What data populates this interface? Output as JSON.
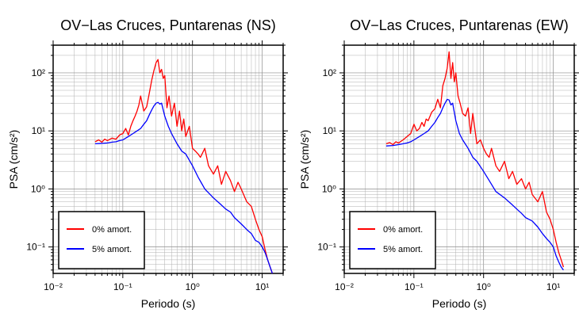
{
  "chart_data": [
    {
      "type": "line",
      "title": "OV−Las Cruces, Puntarenas (NS)",
      "xlabel": "Periodo (s)",
      "ylabel": "PSA (cm/s²)",
      "xscale": "log",
      "yscale": "log",
      "xlim": [
        0.01,
        20
      ],
      "ylim": [
        0.035,
        300
      ],
      "grid": true,
      "legend_position": "bottom-left",
      "x_tick_labels": [
        "10⁻²",
        "10⁻¹",
        "10⁰",
        "10¹"
      ],
      "y_tick_labels": [
        "10⁻¹",
        "10⁰",
        "10¹",
        "10²"
      ],
      "series": [
        {
          "name": "0% amort.",
          "color": "#ff0000",
          "x": [
            0.04,
            0.045,
            0.05,
            0.055,
            0.06,
            0.07,
            0.08,
            0.09,
            0.1,
            0.11,
            0.12,
            0.13,
            0.14,
            0.15,
            0.16,
            0.17,
            0.18,
            0.2,
            0.22,
            0.24,
            0.26,
            0.28,
            0.3,
            0.32,
            0.34,
            0.36,
            0.38,
            0.4,
            0.43,
            0.46,
            0.5,
            0.55,
            0.6,
            0.65,
            0.7,
            0.75,
            0.8,
            0.9,
            1.0,
            1.1,
            1.2,
            1.3,
            1.5,
            1.7,
            2.0,
            2.3,
            2.6,
            3.0,
            3.5,
            4.0,
            4.5,
            5.0,
            6.0,
            7.0,
            8.0,
            9.0,
            10.0,
            11.0,
            12.0,
            13.0,
            14.0
          ],
          "y": [
            6.5,
            7.0,
            6.4,
            7.2,
            6.8,
            7.5,
            7.2,
            8.5,
            9.0,
            11.0,
            8.5,
            12.0,
            15.0,
            18.0,
            22.0,
            28.0,
            40.0,
            22.0,
            26.0,
            45.0,
            75.0,
            110.0,
            150.0,
            170.0,
            100.0,
            115.0,
            80.0,
            90.0,
            25.0,
            40.0,
            18.0,
            30.0,
            12.0,
            22.0,
            10.0,
            16.0,
            8.0,
            12.0,
            5.0,
            4.5,
            4.0,
            3.5,
            5.0,
            2.5,
            1.8,
            2.5,
            1.2,
            2.0,
            1.4,
            0.9,
            1.3,
            1.0,
            0.6,
            0.5,
            0.3,
            0.2,
            0.15,
            0.09,
            0.06,
            0.045,
            0.035
          ]
        },
        {
          "name": "5% amort.",
          "color": "#0000ff",
          "x": [
            0.04,
            0.05,
            0.06,
            0.07,
            0.08,
            0.09,
            0.1,
            0.12,
            0.14,
            0.16,
            0.18,
            0.2,
            0.22,
            0.24,
            0.26,
            0.28,
            0.3,
            0.32,
            0.34,
            0.36,
            0.4,
            0.45,
            0.5,
            0.6,
            0.7,
            0.8,
            1.0,
            1.2,
            1.5,
            2.0,
            2.5,
            3.0,
            3.5,
            4.0,
            5.0,
            6.0,
            7.0,
            8.0,
            9.0,
            10.0,
            11.0,
            12.0,
            13.0,
            14.0
          ],
          "y": [
            6.0,
            6.1,
            6.2,
            6.4,
            6.5,
            6.8,
            7.0,
            8.0,
            9.0,
            10.0,
            11.0,
            13.0,
            15.0,
            19.0,
            23.0,
            27.0,
            30.0,
            31.0,
            29.0,
            30.0,
            18.0,
            12.0,
            9.0,
            6.0,
            4.5,
            4.0,
            2.5,
            1.6,
            1.0,
            0.7,
            0.55,
            0.45,
            0.4,
            0.32,
            0.25,
            0.2,
            0.17,
            0.13,
            0.12,
            0.1,
            0.08,
            0.06,
            0.045,
            0.035
          ]
        }
      ]
    },
    {
      "type": "line",
      "title": "OV−Las Cruces, Puntarenas (EW)",
      "xlabel": "Periodo (s)",
      "ylabel": "PSA (cm/s²)",
      "xscale": "log",
      "yscale": "log",
      "xlim": [
        0.01,
        20
      ],
      "ylim": [
        0.035,
        300
      ],
      "grid": true,
      "legend_position": "bottom-left",
      "x_tick_labels": [
        "10⁻²",
        "10⁻¹",
        "10⁰",
        "10¹"
      ],
      "y_tick_labels": [
        "10⁻¹",
        "10⁰",
        "10¹",
        "10²"
      ],
      "series": [
        {
          "name": "0% amort.",
          "color": "#ff0000",
          "x": [
            0.04,
            0.045,
            0.05,
            0.055,
            0.06,
            0.07,
            0.08,
            0.09,
            0.1,
            0.11,
            0.12,
            0.13,
            0.14,
            0.15,
            0.16,
            0.18,
            0.2,
            0.22,
            0.24,
            0.26,
            0.28,
            0.3,
            0.32,
            0.34,
            0.36,
            0.38,
            0.4,
            0.43,
            0.46,
            0.5,
            0.55,
            0.6,
            0.65,
            0.7,
            0.8,
            0.9,
            1.0,
            1.1,
            1.2,
            1.3,
            1.5,
            1.7,
            2.0,
            2.3,
            2.6,
            3.0,
            3.5,
            4.0,
            4.5,
            5.0,
            6.0,
            7.0,
            8.0,
            9.0,
            10.0,
            11.0,
            12.0,
            13.0,
            14.0
          ],
          "y": [
            6.0,
            6.3,
            5.8,
            6.5,
            6.2,
            7.0,
            8.0,
            9.0,
            13.0,
            10.0,
            11.0,
            14.0,
            12.0,
            16.0,
            15.0,
            21.0,
            24.0,
            35.0,
            25.0,
            60.0,
            80.0,
            120.0,
            230.0,
            80.0,
            150.0,
            70.0,
            100.0,
            40.0,
            30.0,
            20.0,
            18.0,
            25.0,
            9.0,
            20.0,
            6.0,
            7.0,
            5.0,
            4.0,
            3.5,
            5.0,
            2.5,
            2.0,
            3.0,
            1.5,
            2.0,
            1.2,
            1.5,
            1.0,
            1.3,
            0.8,
            0.6,
            0.9,
            0.4,
            0.3,
            0.2,
            0.12,
            0.08,
            0.06,
            0.045
          ]
        },
        {
          "name": "5% amort.",
          "color": "#0000ff",
          "x": [
            0.04,
            0.05,
            0.06,
            0.07,
            0.08,
            0.09,
            0.1,
            0.12,
            0.14,
            0.16,
            0.18,
            0.2,
            0.22,
            0.24,
            0.26,
            0.28,
            0.3,
            0.32,
            0.34,
            0.36,
            0.4,
            0.45,
            0.5,
            0.6,
            0.7,
            0.8,
            1.0,
            1.2,
            1.5,
            2.0,
            2.5,
            3.0,
            3.5,
            4.0,
            5.0,
            6.0,
            7.0,
            8.0,
            9.0,
            10.0,
            11.0,
            12.0,
            13.0,
            14.0
          ],
          "y": [
            5.5,
            5.6,
            5.8,
            6.0,
            6.2,
            6.5,
            7.0,
            8.0,
            9.0,
            10.0,
            12.0,
            14.0,
            17.0,
            20.0,
            25.0,
            30.0,
            35.0,
            34.0,
            28.0,
            30.0,
            15.0,
            9.0,
            7.0,
            5.0,
            3.5,
            3.0,
            2.0,
            1.4,
            0.9,
            0.7,
            0.55,
            0.45,
            0.38,
            0.32,
            0.28,
            0.22,
            0.17,
            0.14,
            0.12,
            0.1,
            0.07,
            0.055,
            0.045,
            0.04
          ]
        }
      ]
    }
  ]
}
